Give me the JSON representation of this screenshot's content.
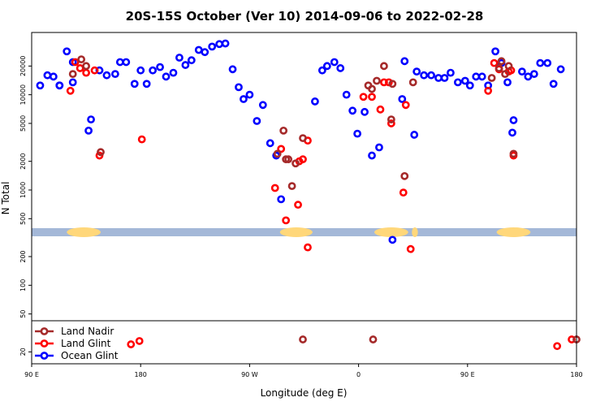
{
  "chart_data": {
    "type": "scatter",
    "title": "20S-15S October (Ver 10)   2014-09-06 to 2022-02-28",
    "xlabel": "Longitude (deg E)",
    "ylabel": "N Total",
    "x_ticks": [
      {
        "value": 90,
        "label": "90 E"
      },
      {
        "value": 180,
        "label": "180"
      },
      {
        "value": 270,
        "label": "90 W"
      },
      {
        "value": 360,
        "label": "0"
      },
      {
        "value": 450,
        "label": "90 E"
      },
      {
        "value": 540,
        "label": "180"
      }
    ],
    "xlim": [
      90,
      540
    ],
    "y_scale": "log",
    "y_ticks": [
      {
        "value": 20,
        "label": "20"
      },
      {
        "value": 50,
        "label": "50"
      },
      {
        "value": 100,
        "label": "100"
      },
      {
        "value": 200,
        "label": "200"
      },
      {
        "value": 500,
        "label": "500"
      },
      {
        "value": 1000,
        "label": "1000"
      },
      {
        "value": 2000,
        "label": "2000"
      },
      {
        "value": 5000,
        "label": "5000"
      },
      {
        "value": 10000,
        "label": "10000"
      },
      {
        "value": 20000,
        "label": "20000"
      }
    ],
    "ylim": [
      15,
      45000
    ],
    "legend_position": "bottom-left",
    "series": [
      {
        "name": "Land Nadir",
        "color": "#a52a2a",
        "points": [
          [
            124,
            16500
          ],
          [
            131,
            23500
          ],
          [
            135,
            20000
          ],
          [
            147,
            2500
          ],
          [
            293,
            2400
          ],
          [
            298,
            4200
          ],
          [
            300,
            2100
          ],
          [
            302,
            2100
          ],
          [
            305,
            1100
          ],
          [
            308,
            1900
          ],
          [
            314,
            3500
          ],
          [
            368,
            12500
          ],
          [
            371,
            11500
          ],
          [
            375,
            14000
          ],
          [
            381,
            20000
          ],
          [
            388,
            13000
          ],
          [
            387,
            5500
          ],
          [
            398,
            1400
          ],
          [
            405,
            13500
          ],
          [
            470,
            15000
          ],
          [
            476,
            19000
          ],
          [
            478,
            22500
          ],
          [
            481,
            16500
          ],
          [
            484,
            20000
          ],
          [
            488,
            2400
          ],
          [
            372,
            27
          ],
          [
            314,
            27
          ],
          [
            540,
            27
          ]
        ]
      },
      {
        "name": "Land Glint",
        "color": "#ff0000",
        "points": [
          [
            122,
            11000
          ],
          [
            126,
            22000
          ],
          [
            130,
            19000
          ],
          [
            135,
            17000
          ],
          [
            142,
            18000
          ],
          [
            146,
            2300
          ],
          [
            181,
            3400
          ],
          [
            291,
            1050
          ],
          [
            296,
            2700
          ],
          [
            300,
            480
          ],
          [
            310,
            700
          ],
          [
            311,
            2000
          ],
          [
            314,
            2100
          ],
          [
            318,
            3300
          ],
          [
            318,
            250
          ],
          [
            364,
            9500
          ],
          [
            371,
            9500
          ],
          [
            378,
            7000
          ],
          [
            381,
            13500
          ],
          [
            385,
            13500
          ],
          [
            387,
            5000
          ],
          [
            397,
            940
          ],
          [
            399,
            7800
          ],
          [
            403,
            240
          ],
          [
            467,
            11000
          ],
          [
            472,
            21500
          ],
          [
            476,
            18500
          ],
          [
            484,
            17500
          ],
          [
            486,
            18000
          ],
          [
            488,
            2300
          ],
          [
            172,
            24
          ],
          [
            179,
            26
          ],
          [
            524,
            23
          ],
          [
            536,
            27
          ]
        ]
      },
      {
        "name": "Ocean Glint",
        "color": "#0000ff",
        "points": [
          [
            97,
            12500
          ],
          [
            103,
            16000
          ],
          [
            108,
            15500
          ],
          [
            113,
            12500
          ],
          [
            113,
            12500
          ],
          [
            119,
            28500
          ],
          [
            124,
            22000
          ],
          [
            124,
            13500
          ],
          [
            137,
            4200
          ],
          [
            139,
            5500
          ],
          [
            146,
            18000
          ],
          [
            152,
            16000
          ],
          [
            159,
            16500
          ],
          [
            163,
            22000
          ],
          [
            168,
            22000
          ],
          [
            175,
            13000
          ],
          [
            180,
            18000
          ],
          [
            185,
            13000
          ],
          [
            190,
            18000
          ],
          [
            196,
            19500
          ],
          [
            201,
            15500
          ],
          [
            207,
            17000
          ],
          [
            212,
            24500
          ],
          [
            217,
            20500
          ],
          [
            222,
            23000
          ],
          [
            228,
            29500
          ],
          [
            233,
            28000
          ],
          [
            239,
            32000
          ],
          [
            245,
            34000
          ],
          [
            250,
            34500
          ],
          [
            256,
            18500
          ],
          [
            261,
            12000
          ],
          [
            265,
            9000
          ],
          [
            270,
            10000
          ],
          [
            276,
            5300
          ],
          [
            281,
            7800
          ],
          [
            287,
            3100
          ],
          [
            292,
            2300
          ],
          [
            296,
            800
          ],
          [
            324,
            8500
          ],
          [
            330,
            18000
          ],
          [
            334,
            20000
          ],
          [
            340,
            22000
          ],
          [
            345,
            19000
          ],
          [
            350,
            10000
          ],
          [
            355,
            6800
          ],
          [
            359,
            3900
          ],
          [
            365,
            6600
          ],
          [
            371,
            2300
          ],
          [
            377,
            2800
          ],
          [
            388,
            300
          ],
          [
            396,
            9000
          ],
          [
            398,
            22500
          ],
          [
            406,
            3800
          ],
          [
            408,
            17500
          ],
          [
            414,
            16000
          ],
          [
            420,
            16000
          ],
          [
            426,
            15000
          ],
          [
            431,
            15000
          ],
          [
            436,
            17000
          ],
          [
            442,
            13500
          ],
          [
            448,
            14000
          ],
          [
            452,
            12500
          ],
          [
            457,
            15500
          ],
          [
            462,
            15500
          ],
          [
            467,
            12500
          ],
          [
            473,
            28500
          ],
          [
            478,
            21500
          ],
          [
            483,
            13500
          ],
          [
            488,
            5400
          ],
          [
            487,
            4000
          ],
          [
            495,
            17500
          ],
          [
            500,
            15500
          ],
          [
            505,
            16500
          ],
          [
            510,
            21500
          ],
          [
            516,
            21500
          ],
          [
            521,
            13000
          ],
          [
            527,
            18500
          ]
        ]
      }
    ],
    "land_regions": [
      [
        119,
        147
      ],
      [
        295,
        322
      ],
      [
        373,
        401
      ],
      [
        404,
        409
      ],
      [
        474,
        502
      ]
    ]
  },
  "colors": {
    "ocean_band": "#a4b8d8",
    "land_band": "#ffd77a",
    "frame": "#000000"
  }
}
